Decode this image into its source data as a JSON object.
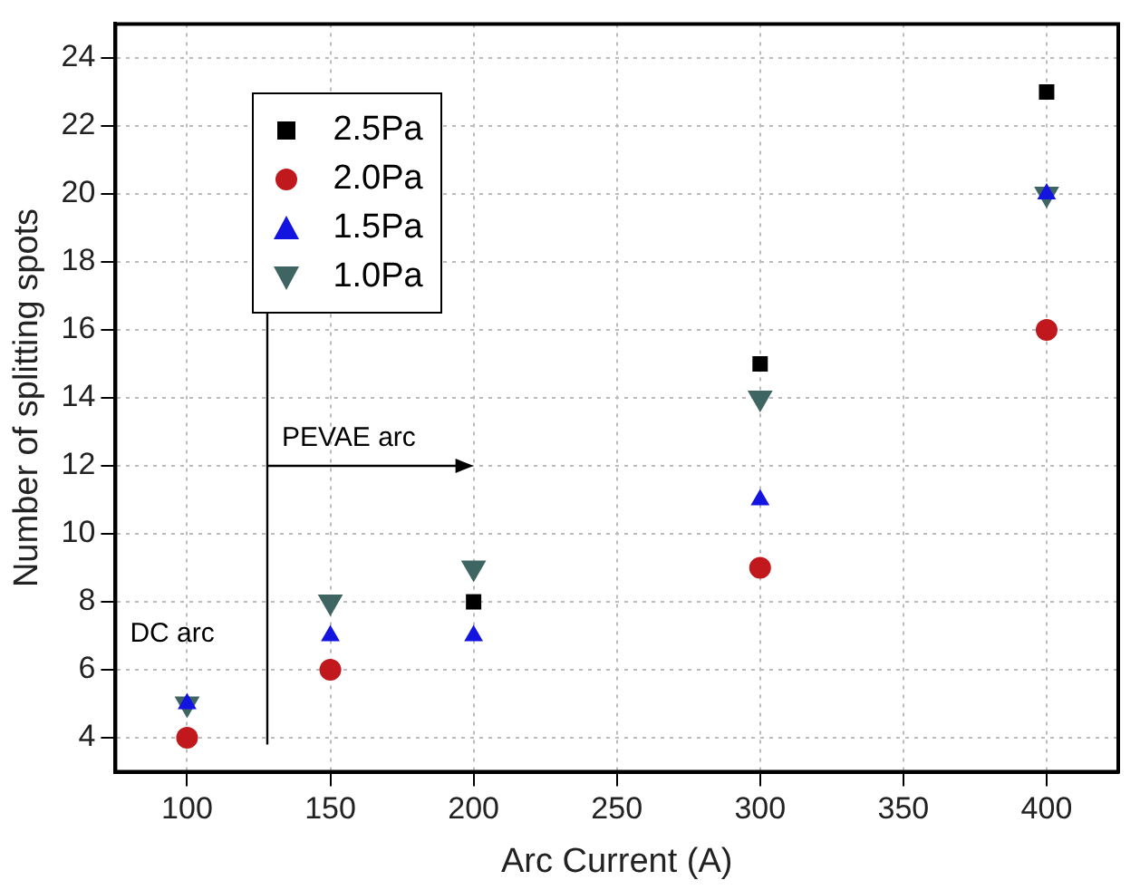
{
  "chart_data": {
    "type": "scatter",
    "xlabel": "Arc Current (A)",
    "ylabel": "Number of splitting spots",
    "x": [
      100,
      150,
      200,
      300,
      400
    ],
    "series": [
      {
        "name": "2.5Pa",
        "color": "#000000",
        "marker": "square",
        "values": [
          null,
          null,
          8,
          15,
          23
        ]
      },
      {
        "name": "2.0Pa",
        "color": "#c0181c",
        "marker": "circle",
        "values": [
          4,
          6,
          null,
          9,
          16
        ]
      },
      {
        "name": "1.5Pa",
        "color": "#1414e0",
        "marker": "triangle",
        "values": [
          5,
          7,
          7,
          11,
          20
        ]
      },
      {
        "name": "1.0Pa",
        "color": "#3f6563",
        "marker": "triangle-down",
        "values": [
          5,
          8,
          9,
          14,
          20
        ]
      }
    ],
    "xlim": [
      75,
      425
    ],
    "xticks": [
      100,
      150,
      200,
      250,
      300,
      350,
      400
    ],
    "ylim": [
      3,
      25
    ],
    "yticks": [
      4,
      6,
      8,
      10,
      12,
      14,
      16,
      18,
      20,
      22,
      24
    ],
    "grid": true,
    "legend": "top left",
    "annotations": [
      "PEVAE arc",
      "DC arc"
    ]
  }
}
